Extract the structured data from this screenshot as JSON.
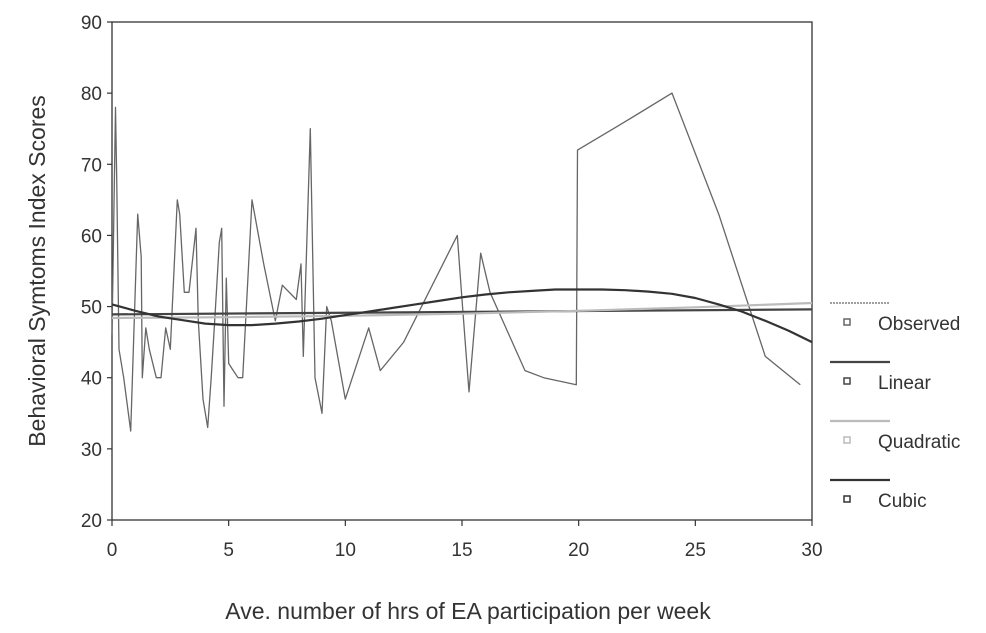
{
  "chart_data": {
    "type": "line",
    "xlabel": "Ave. number of hrs of EA participation per week",
    "ylabel": "Behavioral Symtoms Index Scores",
    "xlim": [
      0,
      30
    ],
    "ylim": [
      20,
      90
    ],
    "xticks": [
      0,
      5,
      10,
      15,
      20,
      25,
      30
    ],
    "yticks": [
      20,
      30,
      40,
      50,
      60,
      70,
      80,
      90
    ],
    "grid": false,
    "legend_position": "right",
    "series": [
      {
        "name": "Observed",
        "color": "#666666",
        "x": [
          0,
          0.15,
          0.2,
          0.3,
          0.5,
          0.8,
          1.1,
          1.25,
          1.3,
          1.45,
          1.6,
          1.9,
          2.1,
          2.3,
          2.5,
          2.8,
          2.9,
          3.1,
          3.3,
          3.6,
          3.7,
          3.9,
          4.1,
          4.25,
          4.4,
          4.6,
          4.7,
          4.8,
          4.9,
          5.0,
          5.2,
          5.4,
          5.6,
          6.0,
          6.5,
          7.0,
          7.3,
          7.9,
          8.1,
          8.2,
          8.5,
          8.7,
          9.0,
          9.2,
          9.4,
          10.0,
          11.0,
          11.5,
          12.5,
          14.8,
          15.0,
          15.3,
          15.8,
          16.2,
          17.7,
          18.5,
          19.9,
          19.95,
          22.0,
          24.0,
          26.0,
          28.0,
          29.5
        ],
        "y": [
          46,
          78,
          68,
          44,
          40,
          32.5,
          63,
          57,
          40,
          47,
          44,
          40,
          40,
          47,
          44,
          65,
          63,
          52,
          52,
          61,
          48,
          37,
          33,
          40,
          48,
          59,
          61,
          36,
          54,
          42,
          41,
          40,
          40,
          65,
          56,
          48,
          53,
          51,
          56,
          43,
          75,
          40,
          35,
          50,
          48,
          37,
          47,
          41,
          45,
          60,
          51,
          38,
          57.5,
          52,
          41,
          40,
          39,
          72,
          76,
          80,
          63,
          43,
          39
        ]
      },
      {
        "name": "Linear",
        "color": "#444444",
        "x": [
          0,
          30
        ],
        "y": [
          48.9,
          49.6
        ]
      },
      {
        "name": "Quadratic",
        "color": "#bbbbbb",
        "x": [
          0,
          5,
          10,
          15,
          20,
          25,
          30
        ],
        "y": [
          48.4,
          48.5,
          48.7,
          49.0,
          49.4,
          49.9,
          50.5
        ]
      },
      {
        "name": "Cubic",
        "color": "#333333",
        "x": [
          0,
          1,
          2,
          3,
          4,
          5,
          6,
          7,
          8,
          9,
          10,
          11,
          12,
          13,
          14,
          15,
          16,
          17,
          18,
          19,
          20,
          21,
          22,
          23,
          24,
          25,
          26,
          27,
          28,
          29,
          30
        ],
        "y": [
          50.3,
          49.4,
          48.6,
          48.1,
          47.6,
          47.4,
          47.4,
          47.6,
          47.9,
          48.3,
          48.8,
          49.3,
          49.8,
          50.3,
          50.8,
          51.3,
          51.7,
          52.0,
          52.2,
          52.4,
          52.4,
          52.4,
          52.3,
          52.1,
          51.8,
          51.2,
          50.3,
          49.3,
          48.0,
          46.6,
          45.0
        ]
      }
    ]
  }
}
